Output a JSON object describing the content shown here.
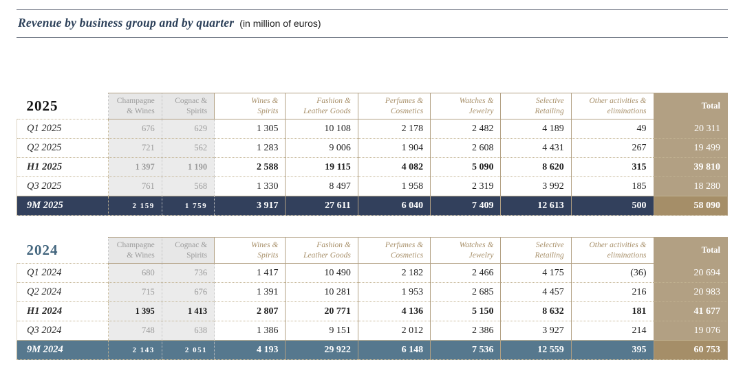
{
  "title": {
    "main": "Revenue by business group and by quarter",
    "unit": "(in million of euros)"
  },
  "colors": {
    "tan": "#b2a083",
    "tan_dark": "#a58e68",
    "navy": "#32405c",
    "steel": "#56788e",
    "gold_text": "#a8906a",
    "title_navy": "#2c4059",
    "year_2025": "#141414",
    "year_2024": "#45677f"
  },
  "columns": [
    "Champagne\n& Wines",
    "Cognac &\nSpirits",
    "Wines &\nSpirits",
    "Fashion &\nLeather Goods",
    "Perfumes &\nCosmetics",
    "Watches &\nJewelry",
    "Selective\nRetailing",
    "Other activities &\neliminations",
    "Total"
  ],
  "tables": [
    {
      "year": "2025",
      "year_color": "#141414",
      "nine_month_color": "#32405c",
      "rows": [
        {
          "label": "Q1 2025",
          "type": "q",
          "gray_style": "muted",
          "values": [
            "676",
            "629",
            "1 305",
            "10 108",
            "2 178",
            "2 482",
            "4 189",
            "49",
            "20 311"
          ]
        },
        {
          "label": "Q2 2025",
          "type": "q",
          "gray_style": "muted",
          "values": [
            "721",
            "562",
            "1 283",
            "9 006",
            "1 904",
            "2 608",
            "4 431",
            "267",
            "19 499"
          ]
        },
        {
          "label": "H1 2025",
          "type": "h1",
          "gray_style": "muted",
          "values": [
            "1 397",
            "1 190",
            "2 588",
            "19 115",
            "4 082",
            "5 090",
            "8 620",
            "315",
            "39 810"
          ]
        },
        {
          "label": "Q3 2025",
          "type": "q",
          "gray_style": "muted",
          "values": [
            "761",
            "568",
            "1 330",
            "8 497",
            "1 958",
            "2 319",
            "3 992",
            "185",
            "18 280"
          ]
        },
        {
          "label": "9M 2025",
          "type": "nine",
          "gray_style": "white",
          "values": [
            "2 159",
            "1 759",
            "3 917",
            "27 611",
            "6 040",
            "7 409",
            "12 613",
            "500",
            "58 090"
          ]
        }
      ]
    },
    {
      "year": "2024",
      "year_color": "#45677f",
      "nine_month_color": "#56788e",
      "rows": [
        {
          "label": "Q1 2024",
          "type": "q",
          "gray_style": "muted",
          "values": [
            "680",
            "736",
            "1 417",
            "10 490",
            "2 182",
            "2 466",
            "4 175",
            "(36)",
            "20 694"
          ]
        },
        {
          "label": "Q2 2024",
          "type": "q",
          "gray_style": "muted",
          "values": [
            "715",
            "676",
            "1 391",
            "10 281",
            "1 953",
            "2 685",
            "4 457",
            "216",
            "20 983"
          ]
        },
        {
          "label": "H1 2024",
          "type": "h1",
          "gray_style": "strong",
          "values": [
            "1 395",
            "1 413",
            "2 807",
            "20 771",
            "4 136",
            "5 150",
            "8 632",
            "181",
            "41 677"
          ]
        },
        {
          "label": "Q3 2024",
          "type": "q",
          "gray_style": "muted",
          "values": [
            "748",
            "638",
            "1 386",
            "9 151",
            "2 012",
            "2 386",
            "3 927",
            "214",
            "19 076"
          ]
        },
        {
          "label": "9M 2024",
          "type": "nine",
          "gray_style": "white",
          "values": [
            "2 143",
            "2 051",
            "4 193",
            "29 922",
            "6 148",
            "7 536",
            "12 559",
            "395",
            "60 753"
          ]
        }
      ]
    }
  ]
}
